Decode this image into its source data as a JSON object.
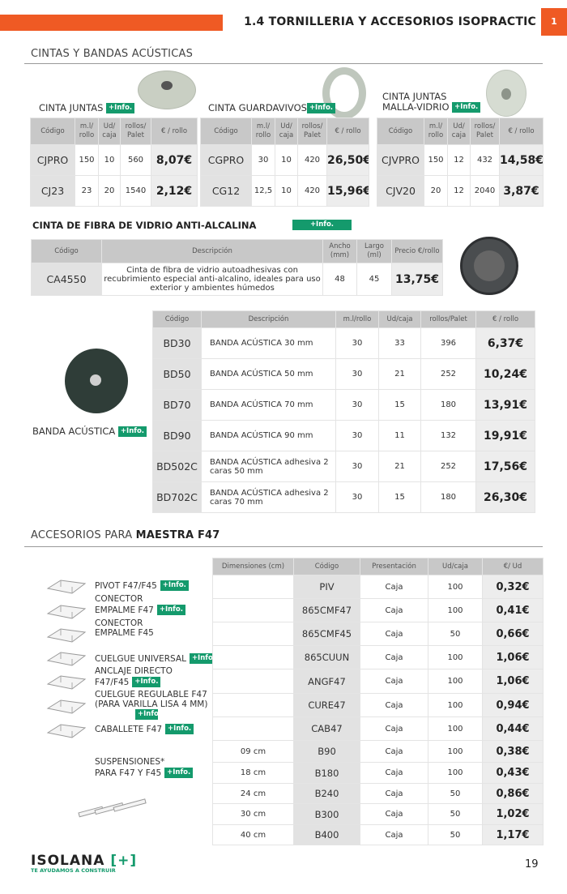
{
  "header": {
    "title": "1.4 TORNILLERIA Y ACCESORIOS ISOPRACTIC",
    "page_tab": "1",
    "accent": "#ef5a24"
  },
  "section1": {
    "title": "CINTAS Y BANDAS ACÚSTICAS"
  },
  "info_label": "+Info.",
  "small_tables": [
    {
      "title": "CINTA JUNTAS",
      "headers": [
        "Código",
        "m.l/ rollo",
        "Ud/ caja",
        "rollos/ Palet",
        "€ / rollo"
      ],
      "rows": [
        [
          "CJPRO",
          "150",
          "10",
          "560",
          "8,07€"
        ],
        [
          "CJ23",
          "23",
          "20",
          "1540",
          "2,12€"
        ]
      ]
    },
    {
      "title": "CINTA GUARDAVIVOS",
      "headers": [
        "Código",
        "m.l/ rollo",
        "Ud/ caja",
        "rollos/ Palet",
        "€ / rollo"
      ],
      "rows": [
        [
          "CGPRO",
          "30",
          "10",
          "420",
          "26,50€"
        ],
        [
          "CG12",
          "12,5",
          "10",
          "420",
          "15,96€"
        ]
      ]
    },
    {
      "title_line1": "CINTA JUNTAS",
      "title_line2": "MALLA-VIDRIO",
      "headers": [
        "Código",
        "m.l/ rollo",
        "Ud/ caja",
        "rollos/ Palet",
        "€ / rollo"
      ],
      "rows": [
        [
          "CJVPRO",
          "150",
          "12",
          "432",
          "14,58€"
        ],
        [
          "CJV20",
          "20",
          "12",
          "2040",
          "3,87€"
        ]
      ]
    }
  ],
  "fibra": {
    "title": "CINTA DE FIBRA DE VIDRIO ANTI-ALCALINA",
    "headers": [
      "Código",
      "Descripción",
      "Ancho (mm)",
      "Largo (ml)",
      "Precio €/rollo"
    ],
    "rows": [
      [
        "CA4550",
        "Cinta de fibra de vidrio autoadhesivas con recubrimiento especial anti-alcalino, ideales para uso exterior y ambientes húmedos",
        "48",
        "45",
        "13,75€"
      ]
    ]
  },
  "banda": {
    "label": "BANDA ACÚSTICA",
    "headers": [
      "Código",
      "Descripción",
      "m.l/rollo",
      "Ud/caja",
      "rollos/Palet",
      "€ / rollo"
    ],
    "rows": [
      [
        "BD30",
        "BANDA ACÚSTICA 30 mm",
        "30",
        "33",
        "396",
        "6,37€"
      ],
      [
        "BD50",
        "BANDA ACÚSTICA 50 mm",
        "30",
        "21",
        "252",
        "10,24€"
      ],
      [
        "BD70",
        "BANDA ACÚSTICA 70 mm",
        "30",
        "15",
        "180",
        "13,91€"
      ],
      [
        "BD90",
        "BANDA ACÚSTICA 90 mm",
        "30",
        "11",
        "132",
        "19,91€"
      ],
      [
        "BD502C",
        "BANDA ACÚSTICA adhesiva 2 caras 50 mm",
        "30",
        "21",
        "252",
        "17,56€"
      ],
      [
        "BD702C",
        "BANDA ACÚSTICA adhesiva 2 caras 70 mm",
        "30",
        "15",
        "180",
        "26,30€"
      ]
    ]
  },
  "section2": {
    "title_prefix": "ACCESORIOS PARA ",
    "title_bold": "MAESTRA F47"
  },
  "accessories": {
    "items": [
      {
        "l1": "PIVOT F47/F45",
        "l2": "",
        "info": true
      },
      {
        "l1": "CONECTOR",
        "l2": "EMPALME F47",
        "info": true
      },
      {
        "l1": "CONECTOR",
        "l2": "EMPALME F45",
        "info": false
      },
      {
        "l1": "CUELGUE UNIVERSAL",
        "l2": "",
        "info": true
      },
      {
        "l1": "ANCLAJE DIRECTO",
        "l2": "F47/F45",
        "info": true
      },
      {
        "l1": "CUELGUE REGULABLE F47",
        "l2": "(PARA VARILLA LISA 4 MM)",
        "info": true
      },
      {
        "l1": "CABALLETE F47",
        "l2": "",
        "info": true
      },
      {
        "l1": "SUSPENSIONES*",
        "l2": "PARA F47 Y F45",
        "info": true
      }
    ],
    "headers": [
      "Dimensiones (cm)",
      "Código",
      "Presentación",
      "Ud/caja",
      "€/ Ud"
    ],
    "rows": [
      [
        "",
        "PIV",
        "Caja",
        "100",
        "0,32€"
      ],
      [
        "",
        "865CMF47",
        "Caja",
        "100",
        "0,41€"
      ],
      [
        "",
        "865CMF45",
        "Caja",
        "50",
        "0,66€"
      ],
      [
        "",
        "865CUUN",
        "Caja",
        "100",
        "1,06€"
      ],
      [
        "",
        "ANGF47",
        "Caja",
        "100",
        "1,06€"
      ],
      [
        "",
        "CURE47",
        "Caja",
        "100",
        "0,94€"
      ],
      [
        "",
        "CAB47",
        "Caja",
        "100",
        "0,44€"
      ],
      [
        "09 cm",
        "B90",
        "Caja",
        "100",
        "0,38€"
      ],
      [
        "18 cm",
        "B180",
        "Caja",
        "100",
        "0,43€"
      ],
      [
        "24 cm",
        "B240",
        "Caja",
        "50",
        "0,86€"
      ],
      [
        "30 cm",
        "B300",
        "Caja",
        "50",
        "1,02€"
      ],
      [
        "40 cm",
        "B400",
        "Caja",
        "50",
        "1,17€"
      ]
    ]
  },
  "footer": {
    "logo": "ISOLANA [+]",
    "tagline": "TE AYUDAMOS A CONSTRUIR",
    "page_number": "19",
    "brand_green": "#149a6c"
  }
}
